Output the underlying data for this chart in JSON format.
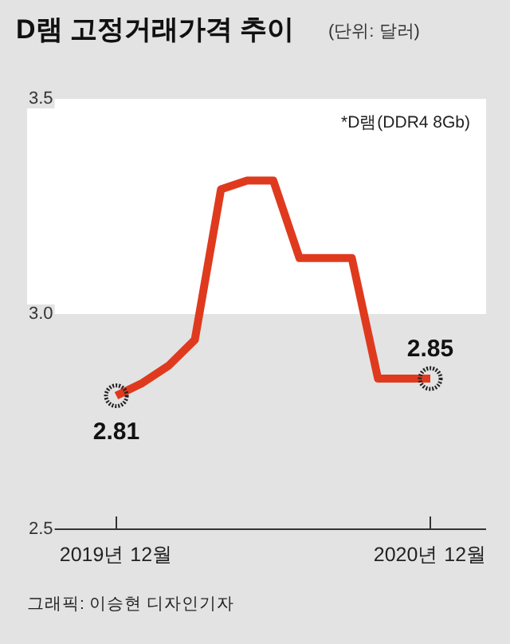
{
  "chart_data": {
    "type": "line",
    "title": "D램 고정거래가격 추이",
    "subtitle": "(단위: 달러)",
    "annotations": [
      "*D램(DDR4 8Gb)",
      "그래픽: 이승현 디자인기자"
    ],
    "categories": [
      "2019년 12월",
      null,
      null,
      null,
      null,
      null,
      null,
      null,
      null,
      null,
      null,
      null,
      "2020년 12월"
    ],
    "series": [
      {
        "color": "#e03a1e",
        "values": [
          2.81,
          2.84,
          2.88,
          2.94,
          3.29,
          3.31,
          3.31,
          3.13,
          3.13,
          3.13,
          2.85,
          2.85,
          2.85
        ],
        "value_labels": [
          "2.81",
          null,
          null,
          null,
          null,
          null,
          null,
          null,
          null,
          null,
          null,
          null,
          "2.85"
        ]
      }
    ],
    "ylim": [
      2.5,
      3.5
    ],
    "yticks": [
      2.5,
      {
        "value": 3,
        "label": "3.0"
      },
      3.5
    ],
    "bands": [
      {
        "axis": "y",
        "from": 3.0,
        "to": 3.5,
        "color": "#ffffff"
      }
    ],
    "grid": false
  }
}
